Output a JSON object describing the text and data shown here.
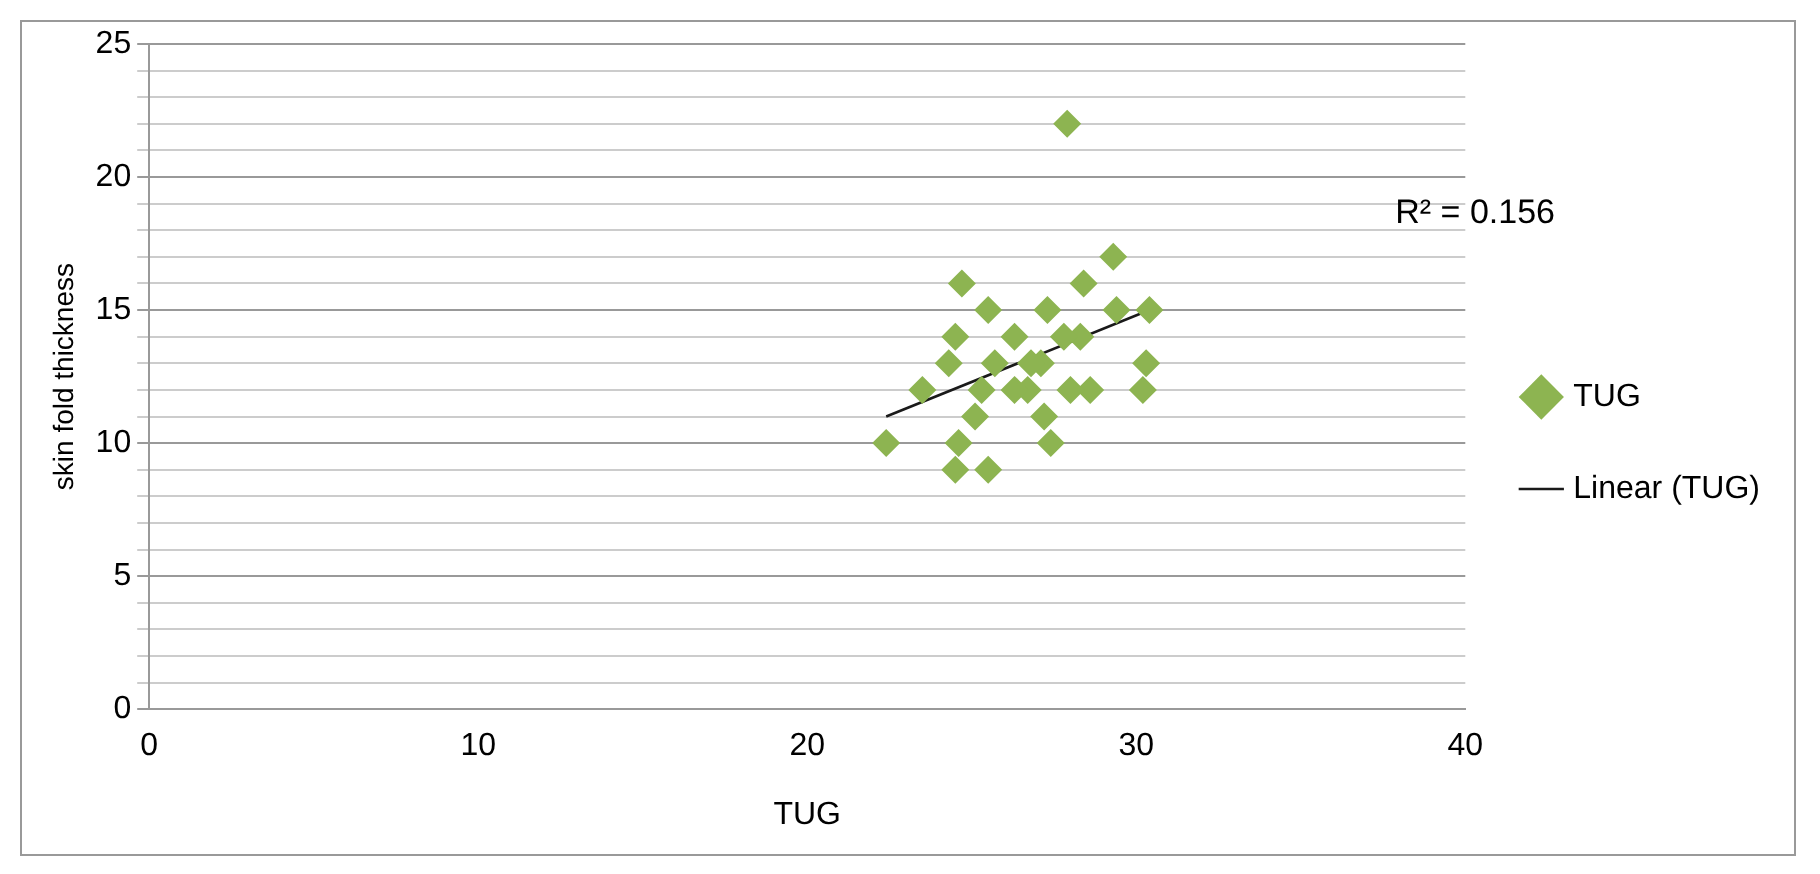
{
  "chart_data": {
    "type": "scatter",
    "xlabel": "TUG",
    "ylabel": "skin fold thickness",
    "xlim": [
      0,
      40
    ],
    "xticks": [
      0,
      10,
      20,
      30,
      40
    ],
    "ylim": [
      0,
      25
    ],
    "yticks": [
      0,
      {
        "value": 1,
        "label": null
      },
      {
        "value": 2,
        "label": null
      },
      {
        "value": 3,
        "label": null
      },
      {
        "value": 4,
        "label": null
      },
      5,
      {
        "value": 6,
        "label": null
      },
      {
        "value": 7,
        "label": null
      },
      {
        "value": 8,
        "label": null
      },
      {
        "value": 9,
        "label": null
      },
      10,
      {
        "value": 11,
        "label": null
      },
      {
        "value": 12,
        "label": null
      },
      {
        "value": 13,
        "label": null
      },
      {
        "value": 14,
        "label": null
      },
      15,
      {
        "value": 16,
        "label": null
      },
      {
        "value": 17,
        "label": null
      },
      {
        "value": 18,
        "label": null
      },
      {
        "value": 19,
        "label": null
      },
      20,
      {
        "value": 21,
        "label": null
      },
      {
        "value": 22,
        "label": null
      },
      {
        "value": 23,
        "label": null
      },
      {
        "value": 24,
        "label": null
      },
      25
    ],
    "grid": "y",
    "legend": "right",
    "marker": "diamond",
    "annotations": [
      "R² = 0.156"
    ],
    "series": [
      {
        "name": "TUG",
        "color": "#8db451",
        "x": [
          27.9,
          29.3,
          24.7,
          28.4,
          25.5,
          27.3,
          29.4,
          30.4,
          24.5,
          26.3,
          28.3,
          24.3,
          25.7,
          27.1,
          30.3,
          23.5,
          25.3,
          26.7,
          28.6,
          30.2,
          25.1,
          27.2,
          22.4,
          24.6,
          27.4,
          24.5,
          25.5,
          26.3,
          26.8,
          27.8,
          28.0
        ],
        "values": [
          22,
          17,
          16,
          16,
          15,
          15,
          15,
          15,
          14,
          14,
          14,
          13,
          13,
          13,
          13,
          12,
          12,
          12,
          12,
          12,
          11,
          11,
          10,
          10,
          10,
          9,
          9,
          12,
          13,
          14,
          12
        ]
      },
      {
        "name": "Linear (TUG)",
        "type": "line",
        "color": "#1a1a1a",
        "line_style": "solid",
        "marker": "none",
        "x": [
          22.4,
          30.4
        ],
        "values": [
          11.0,
          15.0
        ]
      }
    ]
  }
}
